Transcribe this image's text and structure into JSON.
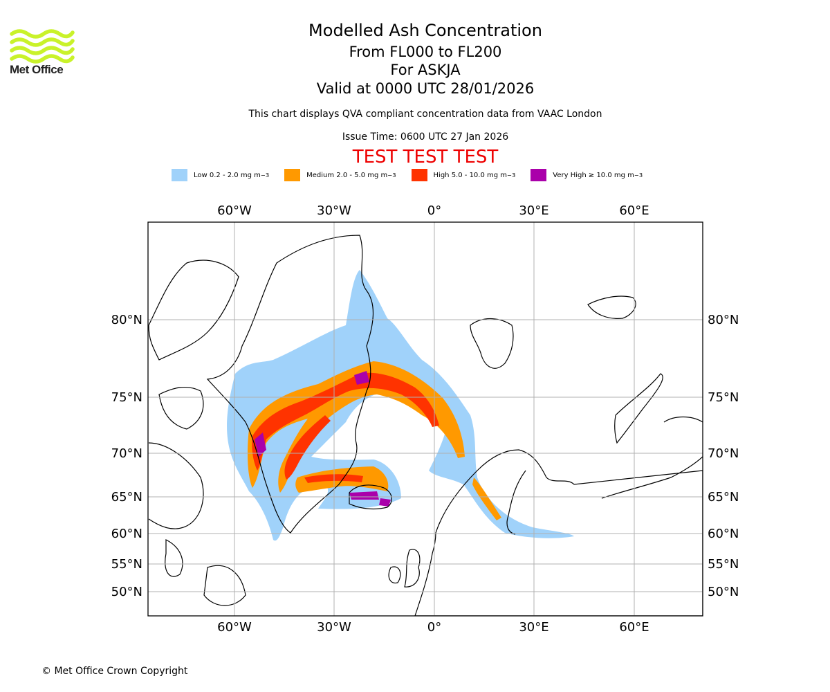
{
  "branding": {
    "name": "Met Office",
    "logo_color": "#c9f22a"
  },
  "titles": {
    "main": "Modelled Ash Concentration",
    "levels": "From FL000 to FL200",
    "volcano": "For ASKJA",
    "valid": "Valid at 0000 UTC 28/01/2026",
    "subtitle": "This chart displays QVA compliant concentration data from VAAC London",
    "issue": "Issue Time: 0600 UTC 27 Jan 2026",
    "banner": "TEST TEST TEST"
  },
  "legend": [
    {
      "label": "Low 0.2 - 2.0 mg m",
      "unit_exp": "−3",
      "color": "#a0d2fa"
    },
    {
      "label": "Medium 2.0 - 5.0 mg m",
      "unit_exp": "−3",
      "color": "#ff9900"
    },
    {
      "label": "High 5.0 - 10.0 mg m",
      "unit_exp": "−3",
      "color": "#ff3300"
    },
    {
      "label": "Very High  ≥  10.0 mg m",
      "unit_exp": "−3",
      "color": "#aa00aa"
    }
  ],
  "axes": {
    "longitude_labels": [
      "60°W",
      "30°W",
      "0°",
      "30°E",
      "60°E"
    ],
    "latitude_labels": [
      "80°N",
      "75°N",
      "70°N",
      "65°N",
      "60°N",
      "55°N",
      "50°N"
    ]
  },
  "copyright": "© Met Office Crown Copyright"
}
